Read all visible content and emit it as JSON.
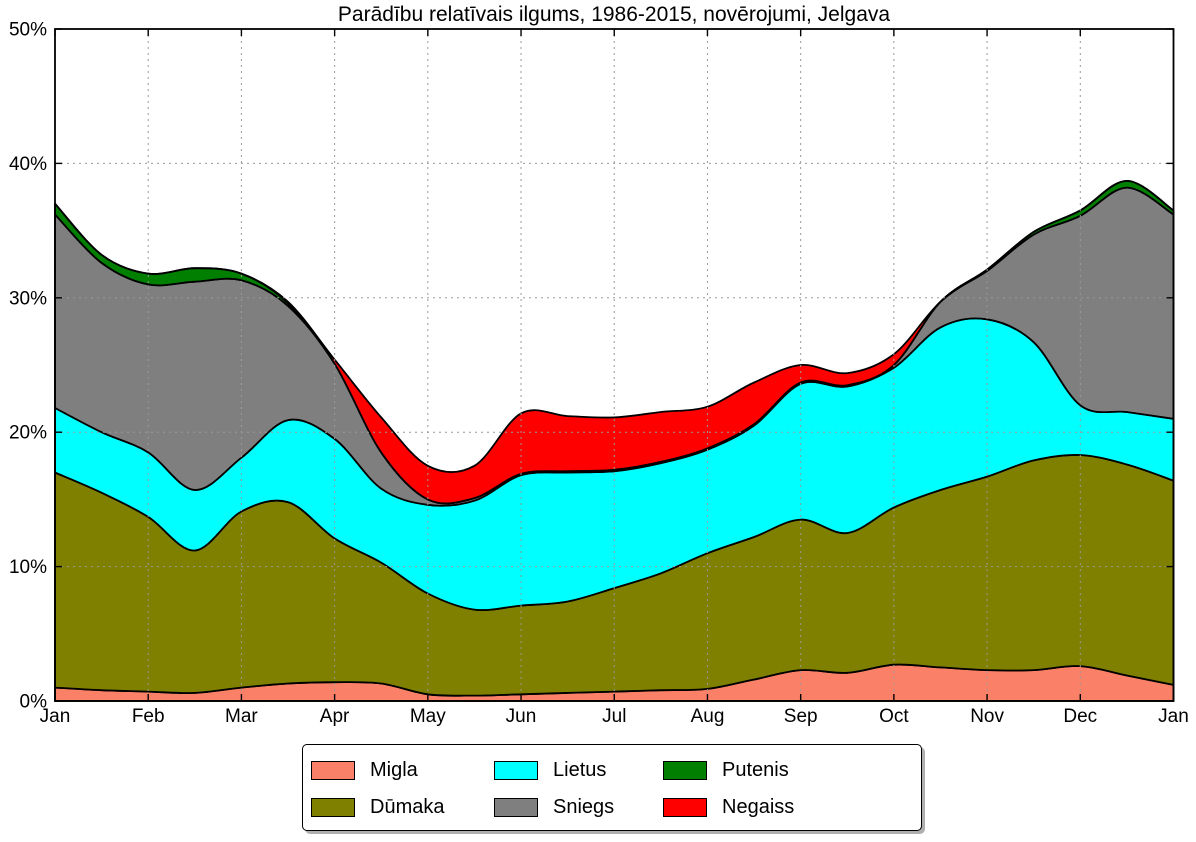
{
  "title": "Parādību relatīvais ilgums, 1986-2015, novērojumi, Jelgava",
  "chart_data": {
    "type": "area",
    "stacked": true,
    "title": "Parādību relatīvais ilgums, 1986-2015, novērojumi, Jelgava",
    "xlabel": "",
    "ylabel": "",
    "ylim": [
      0,
      50
    ],
    "grid": true,
    "grid_style": "dotted",
    "legend_position": "bottom",
    "legend_columns": 3,
    "month_labels": [
      "Jan",
      "Feb",
      "Mar",
      "Apr",
      "May",
      "Jun",
      "Jul",
      "Aug",
      "Sep",
      "Oct",
      "Nov",
      "Dec",
      "Jan"
    ],
    "ytick_labels": [
      "0%",
      "10%",
      "20%",
      "30%",
      "40%",
      "50%"
    ],
    "ytick_values": [
      0,
      10,
      20,
      30,
      40,
      50
    ],
    "categories": [
      "Jan 1",
      "Jan 16",
      "Feb 1",
      "Feb 16",
      "Mar 1",
      "Mar 16",
      "Apr 1",
      "Apr 16",
      "May 1",
      "May 16",
      "Jun 1",
      "Jun 16",
      "Jul 1",
      "Jul 16",
      "Aug 1",
      "Aug 16",
      "Sep 1",
      "Sep 16",
      "Oct 1",
      "Oct 16",
      "Nov 1",
      "Nov 16",
      "Dec 1",
      "Dec 16",
      "Jan 1"
    ],
    "unit": "% of time",
    "series": [
      {
        "name": "Migla",
        "color": "#FA8068",
        "values": [
          1.0,
          0.8,
          0.7,
          0.6,
          1.0,
          1.3,
          1.4,
          1.3,
          0.5,
          0.4,
          0.5,
          0.6,
          0.7,
          0.8,
          0.9,
          1.6,
          2.3,
          2.1,
          2.7,
          2.5,
          2.3,
          2.3,
          2.6,
          1.9,
          1.2
        ]
      },
      {
        "name": "Dūmaka",
        "color": "#7F7F00",
        "values": [
          16.0,
          14.7,
          13.0,
          10.6,
          13.1,
          13.5,
          10.7,
          9.0,
          7.5,
          6.4,
          6.6,
          6.8,
          7.7,
          8.7,
          10.1,
          10.6,
          11.2,
          10.4,
          11.7,
          13.2,
          14.4,
          15.6,
          15.7,
          15.7,
          15.2
        ]
      },
      {
        "name": "Lietus",
        "color": "#00FFFF",
        "values": [
          4.8,
          4.5,
          4.8,
          4.5,
          4.0,
          6.1,
          7.4,
          5.5,
          6.6,
          8.1,
          9.7,
          9.6,
          8.7,
          8.2,
          7.7,
          8.3,
          10.1,
          10.9,
          10.4,
          12.1,
          11.7,
          8.8,
          3.7,
          3.9,
          4.6
        ]
      },
      {
        "name": "Sniegs",
        "color": "#7F7F7F",
        "values": [
          14.4,
          12.6,
          12.5,
          15.5,
          13.2,
          8.5,
          5.6,
          2.7,
          0.4,
          0.2,
          0.1,
          0.1,
          0.1,
          0.1,
          0.1,
          0.1,
          0.1,
          0.1,
          0.2,
          1.9,
          3.6,
          8.0,
          14.1,
          16.7,
          15.2
        ]
      },
      {
        "name": "Putenis",
        "color": "#007F00",
        "values": [
          0.8,
          0.6,
          0.8,
          1.0,
          0.5,
          0.2,
          0.0,
          0.0,
          0.0,
          0.0,
          0.0,
          0.0,
          0.0,
          0.0,
          0.0,
          0.0,
          0.0,
          0.0,
          0.0,
          0.0,
          0.1,
          0.2,
          0.4,
          0.5,
          0.3
        ]
      },
      {
        "name": "Negaiss",
        "color": "#FF0000",
        "values": [
          0.0,
          0.0,
          0.0,
          0.0,
          0.0,
          0.1,
          0.3,
          2.6,
          2.5,
          2.4,
          4.5,
          4.1,
          3.9,
          3.7,
          3.1,
          3.1,
          1.3,
          0.9,
          0.8,
          0.0,
          0.0,
          0.0,
          0.0,
          0.0,
          0.0
        ]
      }
    ]
  }
}
